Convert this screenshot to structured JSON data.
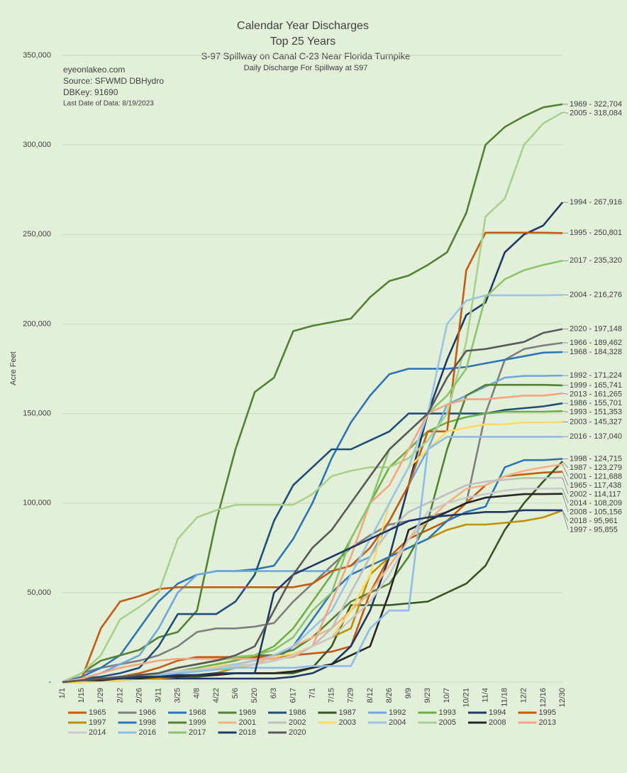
{
  "chart_data": {
    "type": "line",
    "title": "Calendar Year Discharges",
    "subtitle": "Top 25 Years",
    "subtitle2": "S-97 Spillway on Canal C-23 Near Florida Turnpike",
    "subtitle3": "Daily Discharge For Spillway at S97",
    "annotations": [
      "eyeonlakeo.com",
      "Source: SFWMD DBHydro",
      "DBKey: 91690",
      "Last Date of Data: 8/19/2023"
    ],
    "y_label": "Acre Feet",
    "categories": [
      "1/1",
      "1/15",
      "1/29",
      "2/12",
      "2/26",
      "3/11",
      "3/25",
      "4/8",
      "4/22",
      "5/6",
      "5/20",
      "6/3",
      "6/17",
      "7/1",
      "7/15",
      "7/29",
      "8/12",
      "8/26",
      "9/9",
      "9/23",
      "10/7",
      "10/21",
      "11/4",
      "11/18",
      "12/2",
      "12/16",
      "12/30"
    ],
    "ylim": [
      0,
      350000
    ],
    "yticks": [
      {
        "value": 0,
        "label": "-"
      },
      {
        "value": 50000,
        "label": "50,000"
      },
      {
        "value": 100000,
        "label": "100,000"
      },
      {
        "value": 150000,
        "label": "150,000"
      },
      {
        "value": 200000,
        "label": "200,000"
      },
      {
        "value": 250000,
        "label": "250,000"
      },
      {
        "value": 300000,
        "label": "300,000"
      },
      {
        "value": 350000,
        "label": "350,000"
      }
    ],
    "grid": true,
    "legend": "bottom",
    "series": [
      {
        "name": "1965",
        "color": "#c55a11",
        "end_label": "1965 - 117,438",
        "values": [
          0,
          1000,
          2000,
          3000,
          5000,
          8000,
          12000,
          14000,
          14000,
          14000,
          14000,
          14000,
          15000,
          16000,
          17000,
          20000,
          50000,
          70000,
          80000,
          85000,
          90000,
          100000,
          110000,
          115000,
          116000,
          117000,
          117438
        ]
      },
      {
        "name": "1966",
        "color": "#7f7f7f",
        "end_label": "1966 - 189,462",
        "values": [
          0,
          5000,
          8000,
          10000,
          12000,
          15000,
          20000,
          28000,
          30000,
          30000,
          31000,
          33000,
          45000,
          55000,
          65000,
          75000,
          82000,
          88000,
          90000,
          92000,
          95000,
          100000,
          150000,
          180000,
          186000,
          188000,
          189462
        ]
      },
      {
        "name": "1968",
        "color": "#2e75b6",
        "end_label": "1968 - 184,328",
        "values": [
          0,
          3000,
          8000,
          15000,
          30000,
          45000,
          55000,
          60000,
          62000,
          62000,
          63000,
          65000,
          80000,
          100000,
          125000,
          145000,
          160000,
          172000,
          175000,
          175000,
          175000,
          176000,
          178000,
          180000,
          182000,
          184000,
          184328
        ]
      },
      {
        "name": "1969",
        "color": "#548235",
        "end_label": "1969 - 322,704",
        "values": [
          0,
          5000,
          12000,
          15000,
          18000,
          25000,
          28000,
          40000,
          90000,
          130000,
          162000,
          170000,
          196000,
          199000,
          201000,
          203000,
          215000,
          224000,
          227000,
          233000,
          240000,
          262000,
          300000,
          310000,
          316000,
          321000,
          322704
        ]
      },
      {
        "name": "1986",
        "color": "#1f4e79",
        "end_label": "1986 - 155,701",
        "values": [
          0,
          2000,
          3000,
          5000,
          8000,
          20000,
          38000,
          38000,
          38000,
          45000,
          60000,
          90000,
          110000,
          120000,
          130000,
          130000,
          135000,
          140000,
          150000,
          150000,
          150000,
          150000,
          150000,
          152000,
          153000,
          154000,
          155701
        ]
      },
      {
        "name": "1987",
        "color": "#375623",
        "end_label": "1987 - 123,279",
        "values": [
          0,
          0,
          1000,
          1000,
          2000,
          2000,
          3000,
          3000,
          4000,
          5000,
          5000,
          5000,
          5000,
          8000,
          20000,
          43000,
          43000,
          43000,
          44000,
          45000,
          50000,
          55000,
          65000,
          85000,
          100000,
          112000,
          123279
        ]
      },
      {
        "name": "1992",
        "color": "#6fa8dc",
        "end_label": "1992 - 171,224",
        "values": [
          0,
          2000,
          5000,
          10000,
          15000,
          30000,
          50000,
          60000,
          62000,
          62000,
          62000,
          62000,
          62000,
          62000,
          62000,
          65000,
          70000,
          90000,
          110000,
          130000,
          155000,
          160000,
          165000,
          170000,
          171000,
          171000,
          171224
        ]
      },
      {
        "name": "1993",
        "color": "#70ad47",
        "end_label": "1993 - 151,353",
        "values": [
          0,
          1000,
          2000,
          3000,
          4000,
          5000,
          6000,
          8000,
          10000,
          12000,
          15000,
          20000,
          30000,
          45000,
          60000,
          80000,
          100000,
          120000,
          130000,
          140000,
          145000,
          148000,
          150000,
          151000,
          151000,
          151000,
          151353
        ]
      },
      {
        "name": "1994",
        "color": "#203864",
        "end_label": "1994 - 267,916",
        "values": [
          0,
          1000,
          2000,
          2000,
          2000,
          2000,
          2000,
          2000,
          2000,
          2000,
          2000,
          2000,
          3000,
          5000,
          10000,
          20000,
          40000,
          70000,
          110000,
          150000,
          180000,
          205000,
          212000,
          240000,
          250000,
          255000,
          267916
        ]
      },
      {
        "name": "1995",
        "color": "#c55a11",
        "end_label": "1995 - 250,801",
        "values": [
          0,
          2000,
          30000,
          45000,
          48000,
          52000,
          53000,
          53000,
          53000,
          53000,
          53000,
          53000,
          53000,
          55000,
          62000,
          65000,
          75000,
          90000,
          110000,
          140000,
          140000,
          230000,
          251000,
          251000,
          251000,
          251000,
          250801
        ]
      },
      {
        "name": "1997",
        "color": "#bf9000",
        "end_label": "1997 - 95,855",
        "values": [
          0,
          0,
          1000,
          1000,
          2000,
          2000,
          3000,
          4000,
          5000,
          8000,
          10000,
          12000,
          15000,
          20000,
          25000,
          30000,
          60000,
          70000,
          75000,
          80000,
          85000,
          88000,
          88000,
          89000,
          90000,
          92000,
          95855
        ]
      },
      {
        "name": "1998",
        "color": "#2e75b6",
        "end_label": "1998 - 124,715",
        "values": [
          0,
          1000,
          2000,
          3000,
          4000,
          5000,
          6000,
          7000,
          8000,
          9000,
          10000,
          12000,
          20000,
          35000,
          50000,
          60000,
          65000,
          70000,
          75000,
          80000,
          90000,
          95000,
          98000,
          120000,
          124000,
          124000,
          124715
        ]
      },
      {
        "name": "1999",
        "color": "#548235",
        "end_label": "1999 - 165,741",
        "values": [
          0,
          1000,
          2000,
          3000,
          4000,
          5000,
          8000,
          10000,
          12000,
          14000,
          15000,
          15000,
          18000,
          25000,
          35000,
          45000,
          50000,
          55000,
          70000,
          90000,
          130000,
          160000,
          166000,
          166000,
          166000,
          166000,
          165741
        ]
      },
      {
        "name": "2001",
        "color": "#f4b183",
        "end_label": "2001 - 121,688",
        "values": [
          0,
          1000,
          2000,
          3000,
          3000,
          4000,
          5000,
          6000,
          7000,
          8000,
          10000,
          15000,
          20000,
          25000,
          30000,
          40000,
          50000,
          65000,
          80000,
          90000,
          100000,
          108000,
          110000,
          115000,
          118000,
          120000,
          121688
        ]
      },
      {
        "name": "2002",
        "color": "#bfbfbf",
        "end_label": "2002 - 114,117",
        "values": [
          0,
          1000,
          2000,
          3000,
          4000,
          5000,
          6000,
          7000,
          8000,
          9000,
          10000,
          12000,
          15000,
          20000,
          30000,
          50000,
          70000,
          85000,
          95000,
          100000,
          105000,
          110000,
          112000,
          113000,
          114000,
          114000,
          114117
        ]
      },
      {
        "name": "2003",
        "color": "#ffd966",
        "end_label": "2003 - 145,327",
        "values": [
          0,
          0,
          1000,
          1000,
          2000,
          3000,
          5000,
          7000,
          9000,
          10000,
          12000,
          14000,
          16000,
          20000,
          25000,
          40000,
          60000,
          100000,
          120000,
          130000,
          140000,
          142000,
          144000,
          144000,
          145000,
          145000,
          145327
        ]
      },
      {
        "name": "2004",
        "color": "#9dc3e6",
        "end_label": "2004 - 216,276",
        "values": [
          0,
          1000,
          2000,
          2000,
          3000,
          4000,
          5000,
          6000,
          8000,
          10000,
          12000,
          15000,
          20000,
          30000,
          40000,
          60000,
          80000,
          100000,
          120000,
          150000,
          200000,
          213000,
          216000,
          216000,
          216000,
          216000,
          216276
        ]
      },
      {
        "name": "2005",
        "color": "#a9d18e",
        "end_label": "2005 - 318,084",
        "values": [
          0,
          5000,
          15000,
          35000,
          42000,
          50000,
          80000,
          92000,
          96000,
          99000,
          99000,
          99000,
          99000,
          105000,
          115000,
          118000,
          120000,
          120000,
          125000,
          135000,
          150000,
          190000,
          260000,
          270000,
          300000,
          312000,
          318084
        ]
      },
      {
        "name": "2008",
        "color": "#262626",
        "end_label": "2008 - 105,156",
        "values": [
          0,
          1000,
          1000,
          2000,
          2000,
          3000,
          3000,
          4000,
          4000,
          5000,
          5000,
          5000,
          6000,
          8000,
          10000,
          15000,
          20000,
          50000,
          85000,
          90000,
          95000,
          100000,
          103000,
          104000,
          105000,
          105000,
          105156
        ]
      },
      {
        "name": "2013",
        "color": "#f4a582",
        "end_label": "2013 - 161,265",
        "values": [
          0,
          2000,
          5000,
          8000,
          10000,
          12000,
          13000,
          13000,
          13000,
          13000,
          13000,
          13000,
          14000,
          20000,
          45000,
          70000,
          100000,
          110000,
          130000,
          150000,
          155000,
          158000,
          158000,
          159000,
          160000,
          160000,
          161265
        ]
      },
      {
        "name": "2014",
        "color": "#c9c9c9",
        "end_label": "2014 - 108,209",
        "values": [
          0,
          1000,
          2000,
          3000,
          4000,
          5000,
          6000,
          7000,
          8000,
          9000,
          10000,
          12000,
          15000,
          20000,
          25000,
          35000,
          45000,
          60000,
          80000,
          95000,
          100000,
          103000,
          105000,
          107000,
          108000,
          108000,
          108209
        ]
      },
      {
        "name": "2016",
        "color": "#8fbce6",
        "end_label": "2016 - 137,040",
        "values": [
          0,
          1000,
          2000,
          2000,
          3000,
          4000,
          5000,
          6000,
          7000,
          8000,
          8000,
          8000,
          8000,
          9000,
          9000,
          9000,
          30000,
          40000,
          40000,
          130000,
          137000,
          137000,
          137000,
          137000,
          137000,
          137000,
          137040
        ]
      },
      {
        "name": "2017",
        "color": "#8cc56b",
        "end_label": "2017 - 235,320",
        "values": [
          0,
          1000,
          2000,
          2000,
          3000,
          5000,
          8000,
          10000,
          12000,
          14000,
          15000,
          18000,
          25000,
          40000,
          50000,
          80000,
          100000,
          130000,
          140000,
          150000,
          160000,
          175000,
          215000,
          225000,
          230000,
          233000,
          235320
        ]
      },
      {
        "name": "2018",
        "color": "#1f3864",
        "end_label": "2018 - 95,961",
        "values": [
          0,
          1000,
          2000,
          2000,
          3000,
          3000,
          4000,
          4000,
          5000,
          5000,
          5000,
          50000,
          60000,
          65000,
          70000,
          75000,
          80000,
          85000,
          90000,
          92000,
          93000,
          94000,
          95000,
          95000,
          96000,
          96000,
          95961
        ]
      },
      {
        "name": "2020",
        "color": "#595959",
        "end_label": "2020 - 197,148",
        "values": [
          0,
          1000,
          2000,
          3000,
          4000,
          5000,
          8000,
          10000,
          12000,
          15000,
          20000,
          40000,
          60000,
          75000,
          85000,
          100000,
          115000,
          130000,
          140000,
          150000,
          170000,
          185000,
          186000,
          188000,
          190000,
          195000,
          197148
        ]
      }
    ]
  }
}
